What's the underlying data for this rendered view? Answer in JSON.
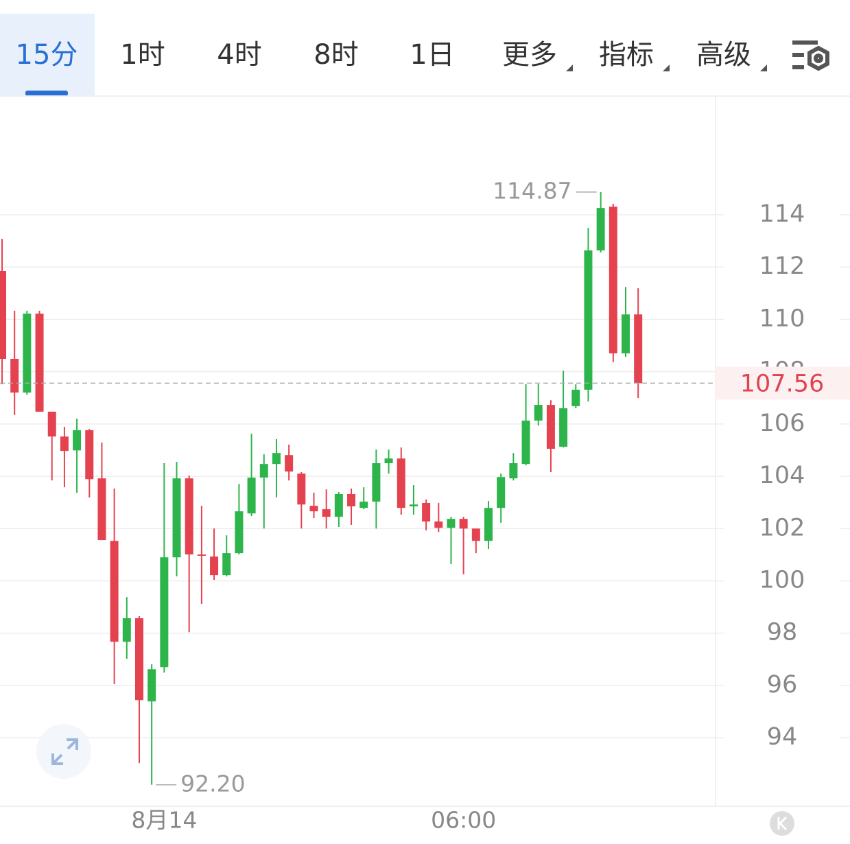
{
  "tabs": [
    "15分",
    "1时",
    "4时",
    "8时",
    "1日",
    "更多",
    "指标",
    "高级"
  ],
  "chart_data": {
    "type": "candlestick",
    "categories": [
      null,
      null,
      null,
      null,
      null,
      null,
      null,
      null,
      null,
      null,
      null,
      null,
      null,
      "8月14",
      null,
      null,
      null,
      null,
      null,
      null,
      null,
      null,
      null,
      null,
      null,
      null,
      null,
      null,
      null,
      null,
      null,
      null,
      null,
      null,
      null,
      null,
      null,
      "06:00",
      null,
      null,
      null,
      null,
      null,
      null,
      null,
      null,
      null,
      null,
      null,
      null,
      null,
      null
    ],
    "open": [
      111.85,
      108.49,
      107.2,
      110.22,
      106.47,
      105.52,
      104.99,
      105.76,
      103.92,
      101.53,
      97.67,
      98.57,
      95.39,
      96.7,
      100.9,
      103.92,
      101.01,
      100.93,
      100.22,
      101.06,
      102.58,
      103.95,
      104.47,
      104.81,
      104.1,
      102.87,
      102.74,
      102.45,
      103.32,
      102.79,
      103.03,
      104.5,
      104.68,
      102.85,
      102.98,
      102.27,
      102.03,
      102.37,
      102.0,
      101.53,
      102.79,
      103.92,
      104.47,
      106.13,
      106.73,
      105.13,
      106.68,
      107.31,
      112.64,
      114.31,
      108.7,
      110.19
    ],
    "high": [
      113.08,
      110.33,
      110.33,
      110.33,
      106.47,
      105.89,
      106.2,
      105.81,
      105.29,
      103.53,
      99.38,
      98.65,
      96.81,
      104.5,
      104.55,
      104.03,
      102.87,
      102.0,
      101.74,
      103.71,
      105.63,
      104.84,
      105.42,
      105.21,
      104.16,
      103.37,
      103.5,
      103.4,
      103.53,
      103.58,
      105.02,
      105.02,
      105.1,
      103.66,
      103.11,
      102.98,
      102.45,
      102.45,
      102.0,
      103.05,
      104.1,
      104.89,
      107.52,
      107.52,
      106.91,
      108.04,
      107.52,
      113.5,
      114.87,
      114.42,
      111.24,
      111.19
    ],
    "low": [
      107.52,
      106.34,
      107.12,
      106.47,
      103.84,
      103.58,
      103.37,
      103.19,
      101.56,
      96.05,
      97.02,
      93.03,
      92.2,
      96.49,
      100.17,
      98.04,
      99.12,
      100.04,
      100.17,
      101.01,
      102.48,
      102.0,
      103.19,
      103.84,
      102.0,
      102.4,
      102.0,
      102.06,
      102.14,
      102.74,
      102.0,
      104.1,
      102.53,
      102.53,
      101.93,
      101.87,
      100.64,
      100.25,
      101.06,
      101.22,
      102.22,
      103.84,
      104.42,
      105.94,
      104.16,
      105.1,
      106.6,
      106.86,
      112.56,
      108.36,
      108.57,
      106.99
    ],
    "close": [
      108.49,
      107.2,
      110.22,
      106.47,
      105.52,
      104.97,
      105.76,
      103.89,
      101.56,
      97.67,
      98.57,
      95.44,
      96.62,
      100.9,
      103.92,
      101.01,
      100.96,
      100.22,
      101.06,
      102.66,
      103.95,
      104.47,
      104.89,
      104.18,
      102.92,
      102.66,
      102.45,
      103.32,
      102.85,
      103.03,
      104.5,
      104.68,
      102.79,
      102.92,
      102.27,
      102.03,
      102.37,
      102.0,
      101.53,
      102.79,
      103.97,
      104.5,
      106.13,
      106.73,
      105.05,
      106.6,
      107.31,
      112.64,
      114.26,
      108.7,
      110.19,
      107.56
    ],
    "up_color": "#2db54b",
    "down_color": "#e5424f",
    "ylim": [
      91.38,
      118.54
    ],
    "yticks": [
      94,
      96,
      98,
      100,
      102,
      104,
      106,
      108,
      110,
      112,
      114
    ],
    "grid": true,
    "annotations": [
      {
        "value": 114.87,
        "label": "114.87"
      },
      {
        "value": 92.2,
        "label": "92.20"
      }
    ],
    "last_price": {
      "value": 107.56,
      "label": "107.56"
    }
  }
}
